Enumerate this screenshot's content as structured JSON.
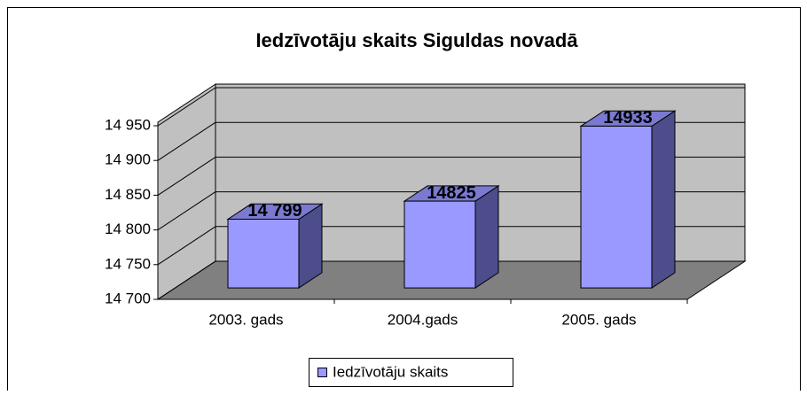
{
  "chart_data": {
    "type": "bar3d",
    "title": "Iedzīvotāju skaits Siguldas novadā",
    "categories": [
      "2003. gads",
      "2004.gads",
      "2005. gads"
    ],
    "series": [
      {
        "name": "Iedzīvotāju skaits",
        "color": "#9999ff",
        "values": [
          14799,
          14825,
          14933
        ],
        "value_labels": [
          "14 799",
          "14825",
          "14933"
        ]
      }
    ],
    "ylim": [
      14700,
      14950
    ],
    "yticks": [
      {
        "value": 14700,
        "label": "14 700"
      },
      {
        "value": 14750,
        "label": "14 750"
      },
      {
        "value": 14800,
        "label": "14 800"
      },
      {
        "value": 14850,
        "label": "14 850"
      },
      {
        "value": 14900,
        "label": "14 900"
      },
      {
        "value": 14950,
        "label": "14 950"
      }
    ],
    "grid": true,
    "legend": "bottom"
  }
}
